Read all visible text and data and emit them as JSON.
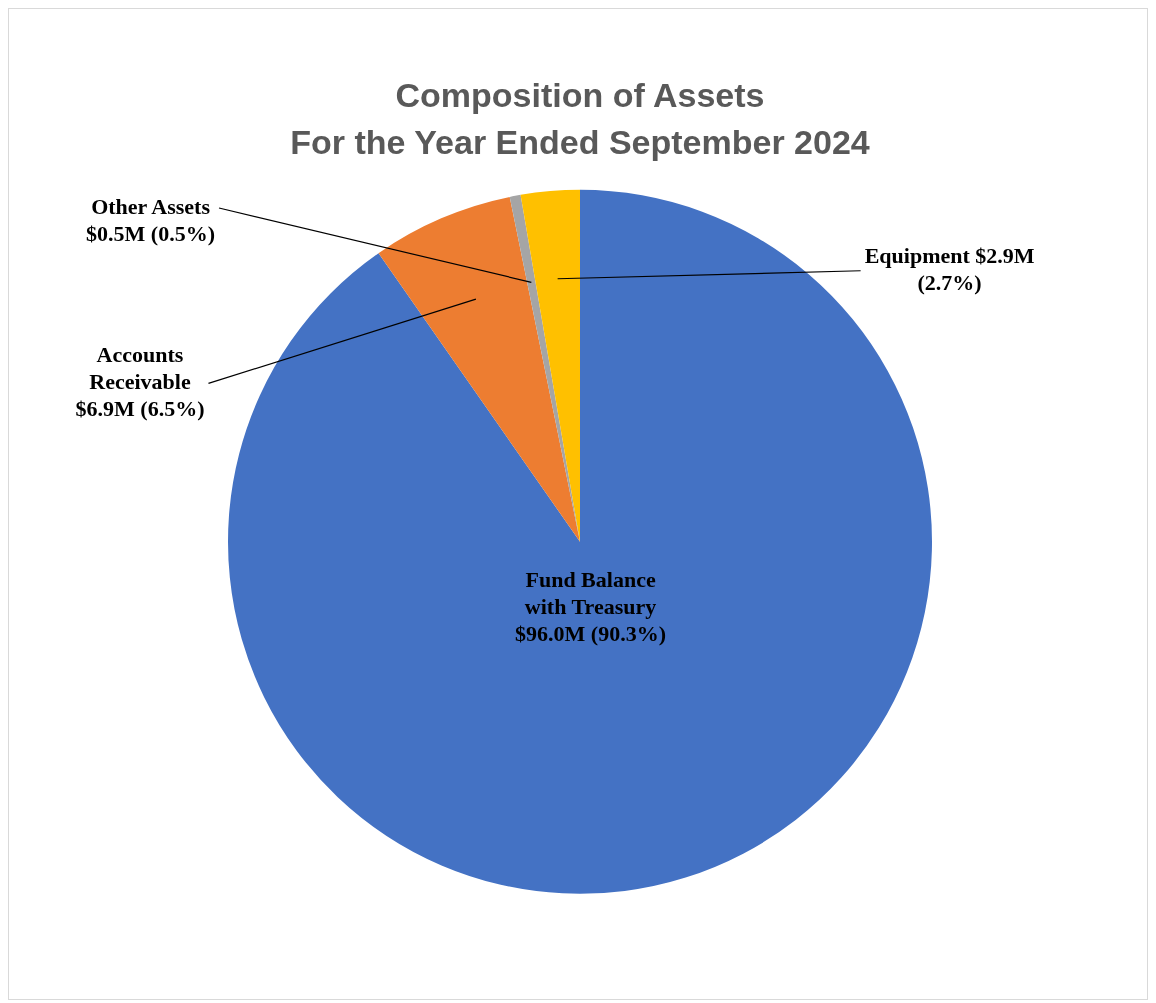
{
  "chart_data": {
    "type": "pie",
    "title": "Composition of Assets",
    "subtitle": "For the Year Ended September 2024",
    "categories": [
      "Fund Balance with Treasury",
      "Accounts Receivable",
      "Other Assets",
      "Equipment"
    ],
    "values": [
      90.3,
      6.5,
      0.5,
      2.7
    ],
    "value_labels": [
      "$96.0M (90.3%)",
      "$6.9M (6.5%)",
      "$0.5M (0.5%)",
      "$2.9M (2.7%)"
    ],
    "colors": [
      "#4472c4",
      "#ed7d31",
      "#a5a5a5",
      "#ffc000"
    ],
    "legend": false
  }
}
